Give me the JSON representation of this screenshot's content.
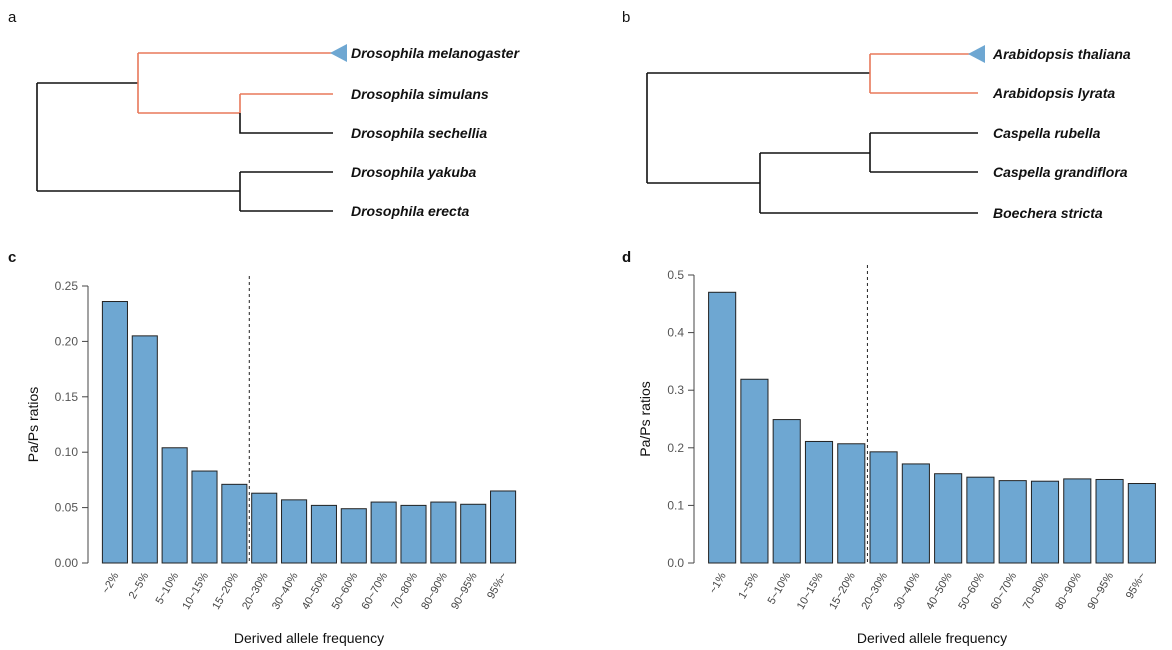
{
  "panel_labels": {
    "a": "a",
    "b": "b",
    "c": "c",
    "d": "d"
  },
  "colors": {
    "bar": "#6ea7d2",
    "highlight_branch": "#e8785a",
    "branch": "#111111",
    "marker": "#6ea7d2"
  },
  "tree_a": {
    "taxa": [
      "Drosophila melanogaster",
      "Drosophila simulans",
      "Drosophila sechellia",
      "Drosophila yakuba",
      "Drosophila erecta"
    ],
    "highlighted_lineage": [
      "Drosophila melanogaster",
      "Drosophila simulans"
    ],
    "marker": "triangle-left-icon",
    "marked_taxon": "Drosophila melanogaster"
  },
  "tree_b": {
    "taxa": [
      "Arabidopsis thaliana",
      "Arabidopsis lyrata",
      "Caspella rubella",
      "Caspella grandiflora",
      "Boechera stricta"
    ],
    "highlighted_lineage": [
      "Arabidopsis thaliana",
      "Arabidopsis lyrata"
    ],
    "marker": "triangle-left-icon",
    "marked_taxon": "Arabidopsis thaliana"
  },
  "chart_data": [
    {
      "type": "bar",
      "panel": "c",
      "categories": [
        "~2%",
        "2~5%",
        "5~10%",
        "10~15%",
        "15~20%",
        "20~30%",
        "30~40%",
        "40~50%",
        "50~60%",
        "60~70%",
        "70~80%",
        "80~90%",
        "90~95%",
        "95%~"
      ],
      "values": [
        0.236,
        0.205,
        0.104,
        0.083,
        0.071,
        0.063,
        0.057,
        0.052,
        0.049,
        0.055,
        0.052,
        0.055,
        0.053,
        0.065
      ],
      "xlabel": "Derived allele frequency",
      "ylabel": "Pa/Ps ratios",
      "ylim": [
        0,
        0.25
      ],
      "yticks": [
        0.0,
        0.05,
        0.1,
        0.15,
        0.2,
        0.25
      ],
      "ytick_labels": [
        "0.00",
        "0.05",
        "0.10",
        "0.15",
        "0.20",
        "0.25"
      ],
      "cutoff_between": [
        "15~20%",
        "20~30%"
      ],
      "grid": false
    },
    {
      "type": "bar",
      "panel": "d",
      "categories": [
        "~1%",
        "1~5%",
        "5~10%",
        "10~15%",
        "15~20%",
        "20~30%",
        "30~40%",
        "40~50%",
        "50~60%",
        "60~70%",
        "70~80%",
        "80~90%",
        "90~95%",
        "95%~"
      ],
      "values": [
        0.47,
        0.319,
        0.249,
        0.211,
        0.207,
        0.193,
        0.172,
        0.155,
        0.149,
        0.143,
        0.142,
        0.146,
        0.145,
        0.138
      ],
      "xlabel": "Derived allele frequency",
      "ylabel": "Pa/Ps ratios",
      "ylim": [
        0,
        0.5
      ],
      "yticks": [
        0.0,
        0.1,
        0.2,
        0.3,
        0.4,
        0.5
      ],
      "ytick_labels": [
        "0.0",
        "0.1",
        "0.2",
        "0.3",
        "0.4",
        "0.5"
      ],
      "cutoff_between": [
        "15~20%",
        "20~30%"
      ],
      "grid": false
    }
  ]
}
